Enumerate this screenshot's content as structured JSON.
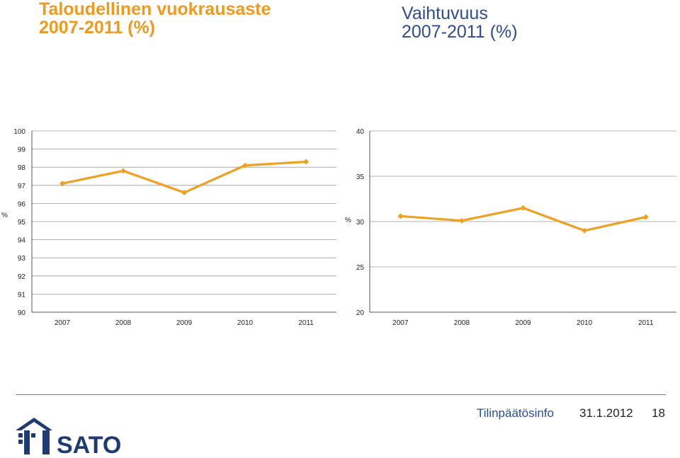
{
  "titles": {
    "left_line1": "Taloudellinen vuokrausaste",
    "left_line2": "2007-2011 (%)",
    "right_line1": "Vaihtuvuus",
    "right_line2": "2007-2011 (%)"
  },
  "colors": {
    "series": "#f0a020",
    "left_title": "#ef9a1f",
    "right_title": "#2e4d8f",
    "footer": "#2e4d8f",
    "logo": "#1f3b73"
  },
  "chart_data": [
    {
      "type": "line",
      "title": "Taloudellinen vuokrausaste 2007-2011 (%)",
      "ylabel": "%",
      "x": [
        "2007",
        "2008",
        "2009",
        "2010",
        "2011"
      ],
      "ylim": [
        90,
        100
      ],
      "yticks": [
        "90",
        "91",
        "92",
        "93",
        "94",
        "95",
        "96",
        "97",
        "98",
        "99",
        "100"
      ],
      "grid": true,
      "series": [
        {
          "values": [
            97.1,
            97.8,
            96.6,
            98.1,
            98.3
          ]
        }
      ]
    },
    {
      "type": "line",
      "title": "Vaihtuvuus 2007-2011 (%)",
      "ylabel": "%",
      "x": [
        "2007",
        "2008",
        "2009",
        "2010",
        "2011"
      ],
      "ylim": [
        20,
        40
      ],
      "yticks": [
        "20",
        "25",
        "30",
        "35",
        "40"
      ],
      "grid": true,
      "series": [
        {
          "values": [
            30.6,
            30.1,
            31.5,
            29.0,
            30.5
          ]
        }
      ]
    }
  ],
  "footer": {
    "info": "Tilinpäätösinfo",
    "date": "31.1.2012",
    "page": "18"
  },
  "logo": {
    "text": "SATO"
  }
}
